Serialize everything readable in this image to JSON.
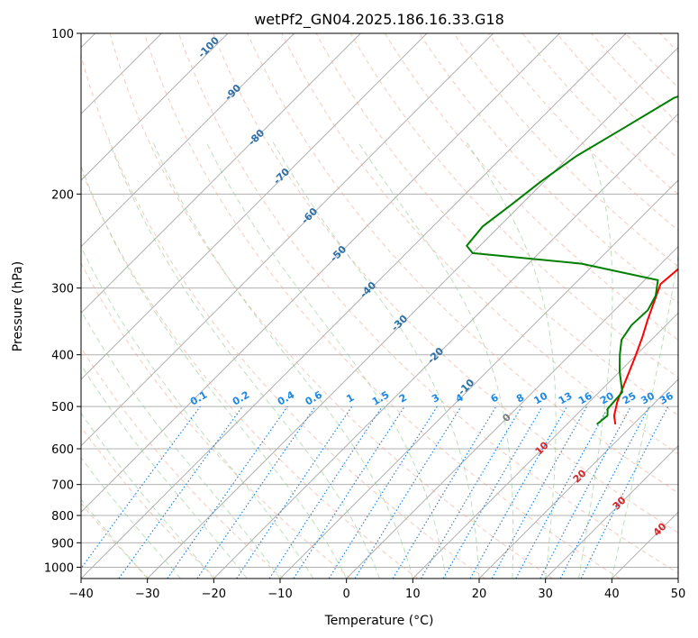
{
  "chart_data": {
    "type": "line",
    "title": "wetPf2_GN04.2025.186.16.33.G18",
    "xlabel": "Temperature (°C)",
    "ylabel": "Pressure (hPa)",
    "xlim": [
      -40,
      50
    ],
    "ylim": [
      1050,
      100
    ],
    "y_scale": "log",
    "x_ticks": [
      -40,
      -30,
      -20,
      -10,
      0,
      10,
      20,
      30,
      40,
      50
    ],
    "y_ticks": [
      100,
      200,
      300,
      400,
      500,
      600,
      700,
      800,
      900,
      1000
    ],
    "grid": true,
    "series": [
      {
        "role": "temperature",
        "color": "#ff0000",
        "points": [
          [
            17.3,
            540
          ],
          [
            15.8,
            520
          ],
          [
            14.2,
            490
          ],
          [
            12.4,
            450
          ],
          [
            10.2,
            405
          ],
          [
            8.2,
            370
          ],
          [
            6.5,
            345
          ],
          [
            4.8,
            320
          ],
          [
            3.0,
            295
          ],
          [
            3.5,
            270
          ],
          [
            5.2,
            255
          ],
          [
            7.0,
            245
          ],
          [
            9.5,
            233
          ],
          [
            11.3,
            220
          ],
          [
            12.5,
            205
          ],
          [
            13.0,
            190
          ],
          [
            13.3,
            175
          ],
          [
            13.2,
            160
          ],
          [
            14.0,
            145
          ],
          [
            15.0,
            132
          ],
          [
            16.2,
            121
          ],
          [
            18.0,
            112
          ],
          [
            20.5,
            106
          ],
          [
            22.0,
            101
          ],
          [
            22.5,
            99
          ]
        ]
      },
      {
        "role": "dewpoint",
        "color": "#008000",
        "points": [
          [
            14.5,
            540
          ],
          [
            14.8,
            520
          ],
          [
            13.8,
            505
          ],
          [
            13.5,
            470
          ],
          [
            10.0,
            430
          ],
          [
            7.5,
            400
          ],
          [
            5.5,
            375
          ],
          [
            4.8,
            352
          ],
          [
            5.0,
            330
          ],
          [
            4.0,
            310
          ],
          [
            2.0,
            290
          ],
          [
            -12.0,
            270
          ],
          [
            -30.0,
            258
          ],
          [
            -32.0,
            250
          ],
          [
            -32.5,
            230
          ],
          [
            -31.5,
            210
          ],
          [
            -30.5,
            190
          ],
          [
            -29.0,
            170
          ],
          [
            -26.0,
            150
          ],
          [
            -23.0,
            132
          ],
          [
            -20.0,
            127
          ],
          [
            -16.0,
            124
          ],
          [
            -14.5,
            120
          ],
          [
            -17.0,
            116
          ],
          [
            -20.5,
            114
          ],
          [
            -18.0,
            108
          ],
          [
            -17.5,
            105
          ],
          [
            -6.5,
            101
          ],
          [
            -6.0,
            100
          ]
        ]
      }
    ],
    "dry_adiabat_labels": [
      "-100",
      "-90",
      "-80",
      "-70",
      "-60",
      "-50",
      "-40",
      "-30",
      "-20",
      "-10",
      "0",
      "10",
      "20",
      "30",
      "40"
    ],
    "mixing_ratio_labels": [
      "0.1",
      "0.2",
      "0.4",
      "0.6",
      "1",
      "1.5",
      "2",
      "3",
      "4",
      "6",
      "8",
      "10",
      "13",
      "16",
      "20",
      "25",
      "30",
      "36"
    ]
  }
}
